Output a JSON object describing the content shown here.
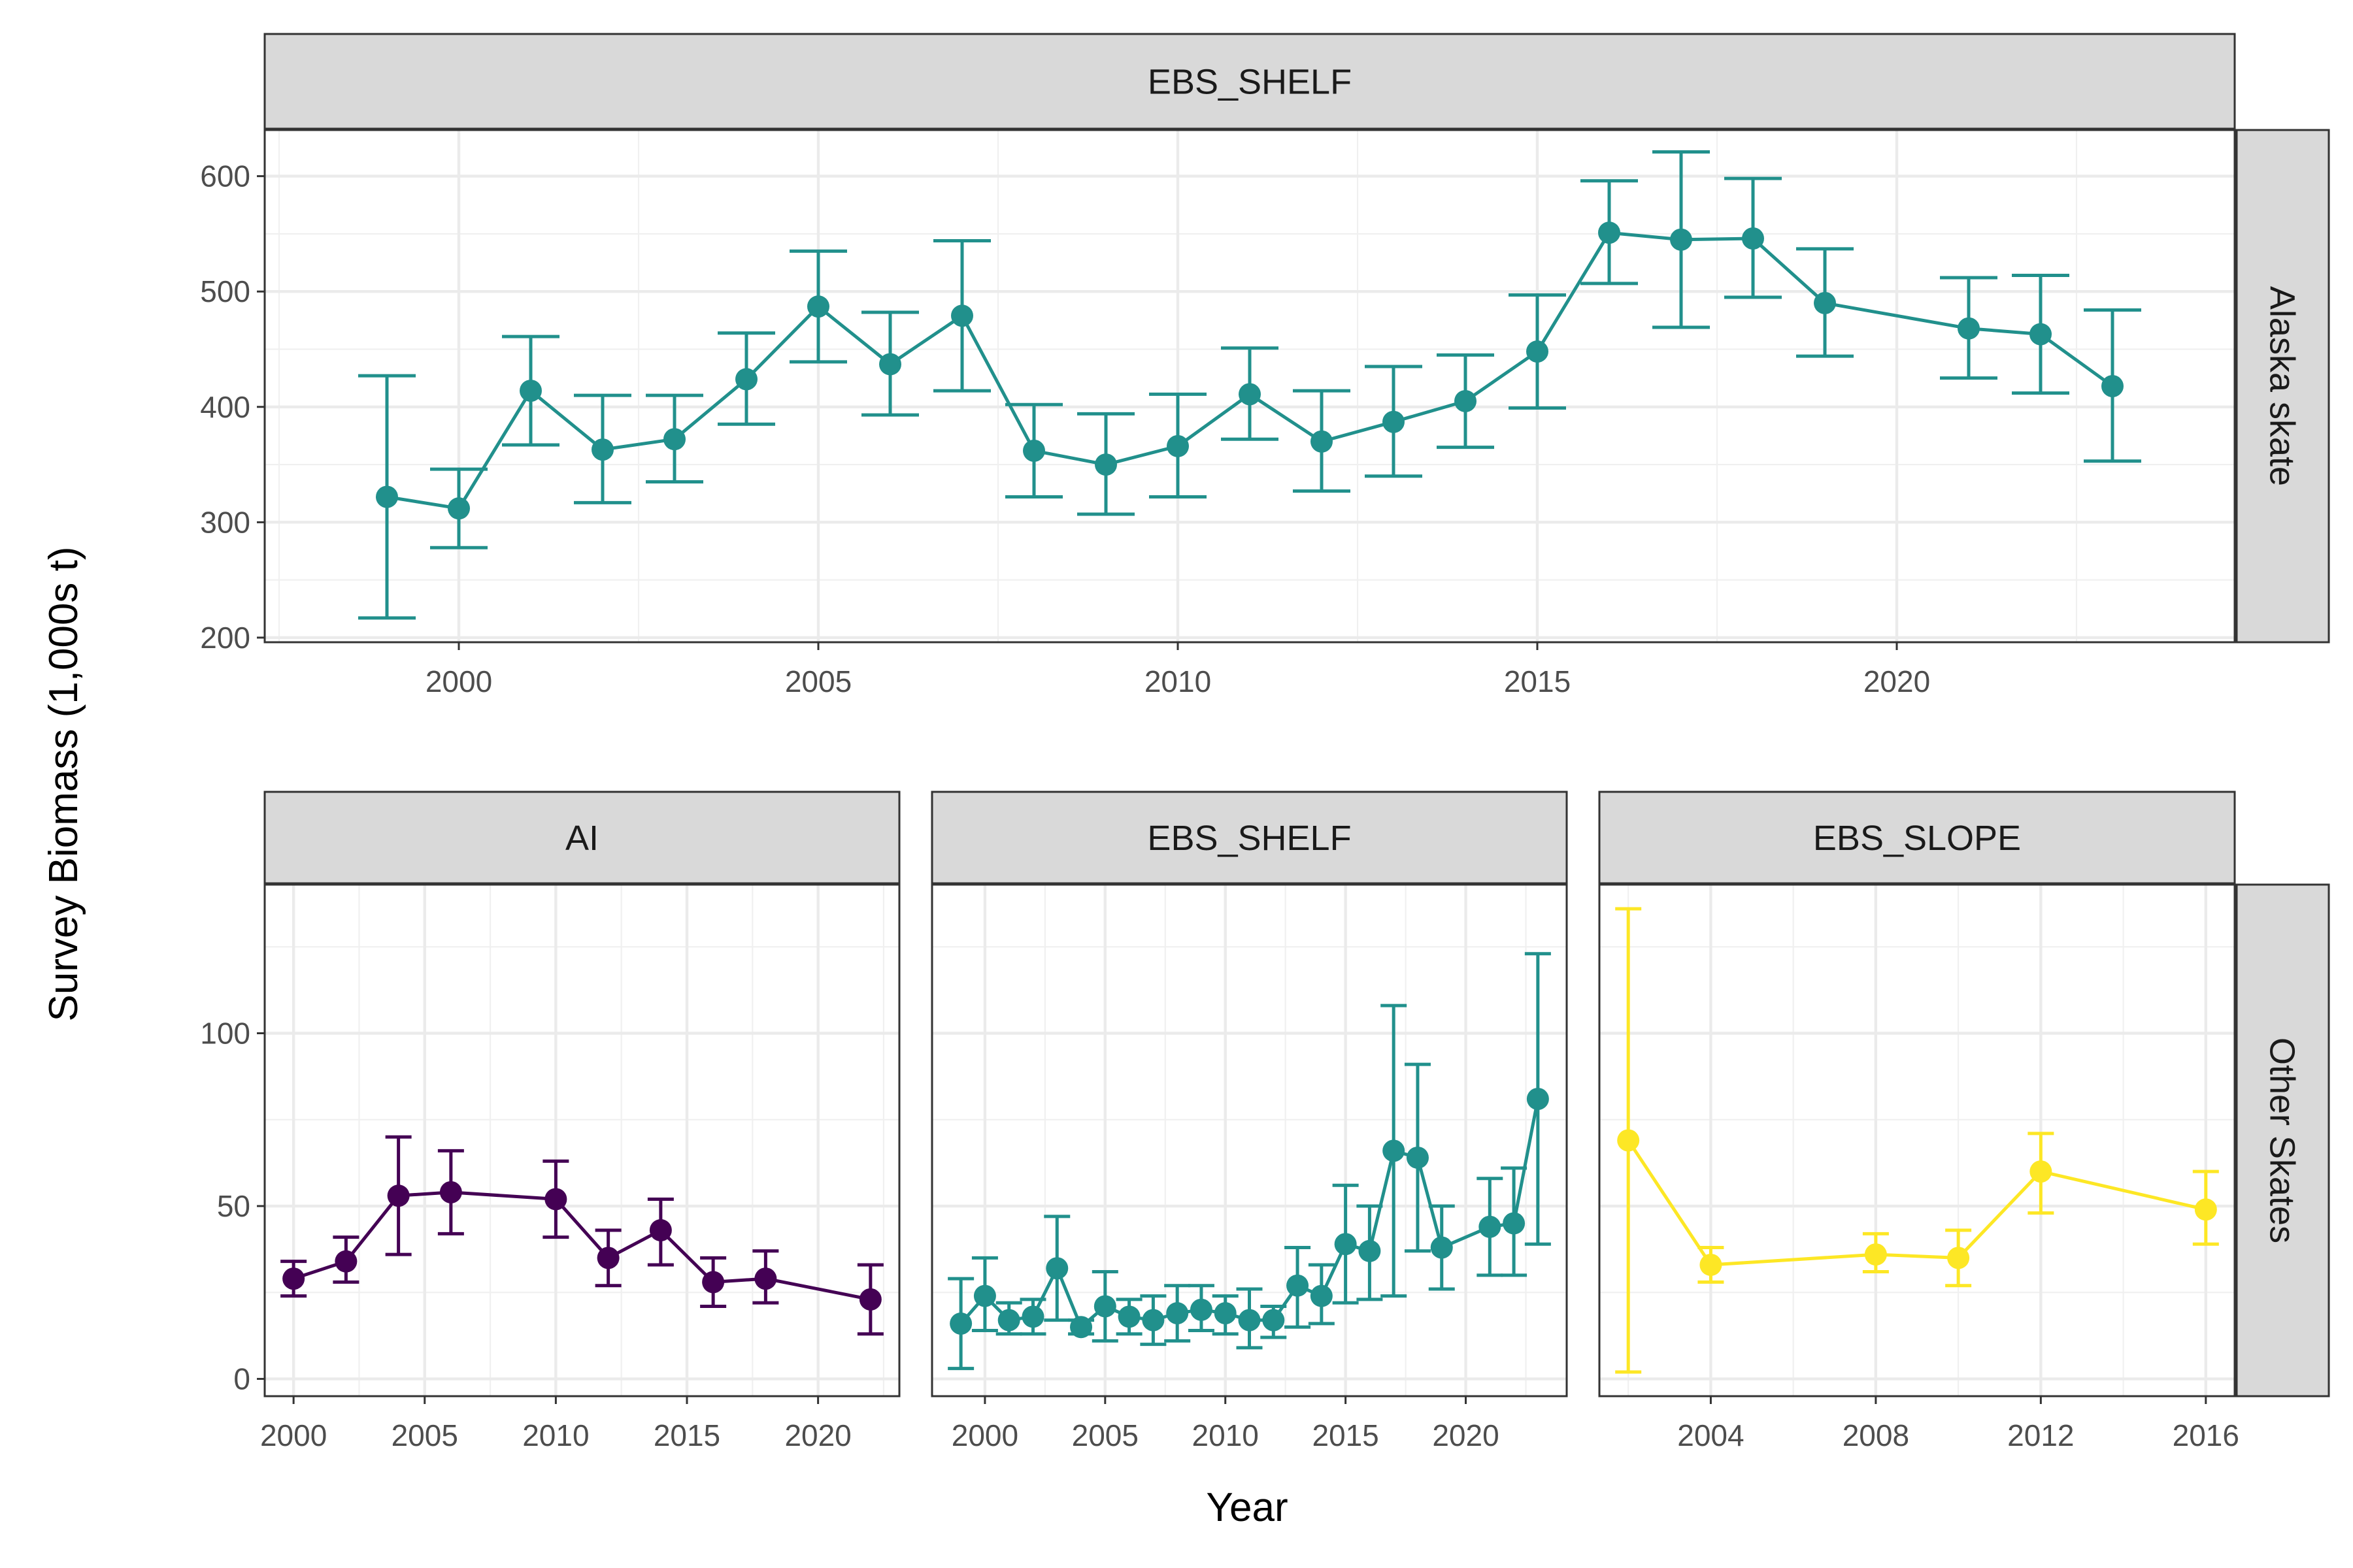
{
  "chart_data": {
    "type": "line",
    "xlabel": "Year",
    "ylabel": "Survey Biomass (1,000s t)",
    "grid": true,
    "error_bars": true,
    "colors": {
      "EBS_SHELF": "#21908C",
      "AI": "#440154",
      "EBS_SLOPE": "#FDE725"
    },
    "panels": [
      {
        "row_label": "Alaska skate",
        "strip": "EBS_SHELF",
        "series": "EBS_SHELF",
        "xlim": [
          1997.3,
          2024.7
        ],
        "ylim": [
          196,
          640
        ],
        "xticks": [
          2000,
          2005,
          2010,
          2015,
          2020
        ],
        "yticks": [
          200,
          300,
          400,
          500,
          600
        ],
        "points": [
          {
            "x": 1999,
            "y": 322,
            "lo": 217,
            "hi": 427
          },
          {
            "x": 2000,
            "y": 312,
            "lo": 278,
            "hi": 346
          },
          {
            "x": 2001,
            "y": 414,
            "lo": 367,
            "hi": 461
          },
          {
            "x": 2002,
            "y": 363,
            "lo": 317,
            "hi": 410
          },
          {
            "x": 2003,
            "y": 372,
            "lo": 335,
            "hi": 410
          },
          {
            "x": 2004,
            "y": 424,
            "lo": 385,
            "hi": 464
          },
          {
            "x": 2005,
            "y": 487,
            "lo": 439,
            "hi": 535
          },
          {
            "x": 2006,
            "y": 437,
            "lo": 393,
            "hi": 482
          },
          {
            "x": 2007,
            "y": 479,
            "lo": 414,
            "hi": 544
          },
          {
            "x": 2008,
            "y": 362,
            "lo": 322,
            "hi": 402
          },
          {
            "x": 2009,
            "y": 350,
            "lo": 307,
            "hi": 394
          },
          {
            "x": 2010,
            "y": 366,
            "lo": 322,
            "hi": 411
          },
          {
            "x": 2011,
            "y": 411,
            "lo": 372,
            "hi": 451
          },
          {
            "x": 2012,
            "y": 370,
            "lo": 327,
            "hi": 414
          },
          {
            "x": 2013,
            "y": 387,
            "lo": 340,
            "hi": 435
          },
          {
            "x": 2014,
            "y": 405,
            "lo": 365,
            "hi": 445
          },
          {
            "x": 2015,
            "y": 448,
            "lo": 399,
            "hi": 497
          },
          {
            "x": 2016,
            "y": 551,
            "lo": 507,
            "hi": 596
          },
          {
            "x": 2017,
            "y": 545,
            "lo": 469,
            "hi": 621
          },
          {
            "x": 2018,
            "y": 546,
            "lo": 495,
            "hi": 598
          },
          {
            "x": 2019,
            "y": 490,
            "lo": 444,
            "hi": 537
          },
          {
            "x": 2021,
            "y": 468,
            "lo": 425,
            "hi": 512
          },
          {
            "x": 2022,
            "y": 463,
            "lo": 412,
            "hi": 514
          },
          {
            "x": 2023,
            "y": 418,
            "lo": 353,
            "hi": 484
          }
        ]
      },
      {
        "row_label": "Other Skates",
        "strip": "AI",
        "series": "AI",
        "xlim": [
          1998.9,
          2023.1
        ],
        "ylim": [
          -5,
          143
        ],
        "xticks": [
          2000,
          2005,
          2010,
          2015,
          2020
        ],
        "yticks": [
          0,
          50,
          100
        ],
        "points": [
          {
            "x": 2000,
            "y": 29,
            "lo": 24,
            "hi": 34
          },
          {
            "x": 2002,
            "y": 34,
            "lo": 28,
            "hi": 41
          },
          {
            "x": 2004,
            "y": 53,
            "lo": 36,
            "hi": 70
          },
          {
            "x": 2006,
            "y": 54,
            "lo": 42,
            "hi": 66
          },
          {
            "x": 2010,
            "y": 52,
            "lo": 41,
            "hi": 63
          },
          {
            "x": 2012,
            "y": 35,
            "lo": 27,
            "hi": 43
          },
          {
            "x": 2014,
            "y": 43,
            "lo": 33,
            "hi": 52
          },
          {
            "x": 2016,
            "y": 28,
            "lo": 21,
            "hi": 35
          },
          {
            "x": 2018,
            "y": 29,
            "lo": 22,
            "hi": 37
          },
          {
            "x": 2022,
            "y": 23,
            "lo": 13,
            "hi": 33
          }
        ]
      },
      {
        "row_label": "Other Skates",
        "strip": "EBS_SHELF",
        "series": "EBS_SHELF",
        "xlim": [
          1997.8,
          2024.2
        ],
        "ylim": [
          -5,
          143
        ],
        "xticks": [
          2000,
          2005,
          2010,
          2015,
          2020
        ],
        "yticks": [
          0,
          50,
          100
        ],
        "points": [
          {
            "x": 1999,
            "y": 16,
            "lo": 3,
            "hi": 29
          },
          {
            "x": 2000,
            "y": 24,
            "lo": 14,
            "hi": 35
          },
          {
            "x": 2001,
            "y": 17,
            "lo": 13,
            "hi": 22
          },
          {
            "x": 2002,
            "y": 18,
            "lo": 13,
            "hi": 23
          },
          {
            "x": 2003,
            "y": 32,
            "lo": 17,
            "hi": 47
          },
          {
            "x": 2004,
            "y": 15,
            "lo": 13,
            "hi": 17
          },
          {
            "x": 2005,
            "y": 21,
            "lo": 11,
            "hi": 31
          },
          {
            "x": 2006,
            "y": 18,
            "lo": 13,
            "hi": 23
          },
          {
            "x": 2007,
            "y": 17,
            "lo": 10,
            "hi": 24
          },
          {
            "x": 2008,
            "y": 19,
            "lo": 11,
            "hi": 27
          },
          {
            "x": 2009,
            "y": 20,
            "lo": 14,
            "hi": 27
          },
          {
            "x": 2010,
            "y": 19,
            "lo": 13,
            "hi": 24
          },
          {
            "x": 2011,
            "y": 17,
            "lo": 9,
            "hi": 26
          },
          {
            "x": 2012,
            "y": 17,
            "lo": 12,
            "hi": 21
          },
          {
            "x": 2013,
            "y": 27,
            "lo": 15,
            "hi": 38
          },
          {
            "x": 2014,
            "y": 24,
            "lo": 16,
            "hi": 33
          },
          {
            "x": 2015,
            "y": 39,
            "lo": 22,
            "hi": 56
          },
          {
            "x": 2016,
            "y": 37,
            "lo": 23,
            "hi": 50
          },
          {
            "x": 2017,
            "y": 66,
            "lo": 24,
            "hi": 108
          },
          {
            "x": 2018,
            "y": 64,
            "lo": 37,
            "hi": 91
          },
          {
            "x": 2019,
            "y": 38,
            "lo": 26,
            "hi": 50
          },
          {
            "x": 2021,
            "y": 44,
            "lo": 30,
            "hi": 58
          },
          {
            "x": 2022,
            "y": 45,
            "lo": 30,
            "hi": 61
          },
          {
            "x": 2023,
            "y": 81,
            "lo": 39,
            "hi": 123
          }
        ]
      },
      {
        "row_label": "Other Skates",
        "strip": "EBS_SLOPE",
        "series": "EBS_SLOPE",
        "xlim": [
          2001.3,
          2016.7
        ],
        "ylim": [
          -5,
          143
        ],
        "xticks": [
          2004,
          2008,
          2012,
          2016
        ],
        "yticks": [
          0,
          50,
          100
        ],
        "points": [
          {
            "x": 2002,
            "y": 69,
            "lo": 2,
            "hi": 136
          },
          {
            "x": 2004,
            "y": 33,
            "lo": 28,
            "hi": 38
          },
          {
            "x": 2008,
            "y": 36,
            "lo": 31,
            "hi": 42
          },
          {
            "x": 2010,
            "y": 35,
            "lo": 27,
            "hi": 43
          },
          {
            "x": 2012,
            "y": 60,
            "lo": 48,
            "hi": 71
          },
          {
            "x": 2016,
            "y": 49,
            "lo": 39,
            "hi": 60
          }
        ]
      }
    ]
  }
}
